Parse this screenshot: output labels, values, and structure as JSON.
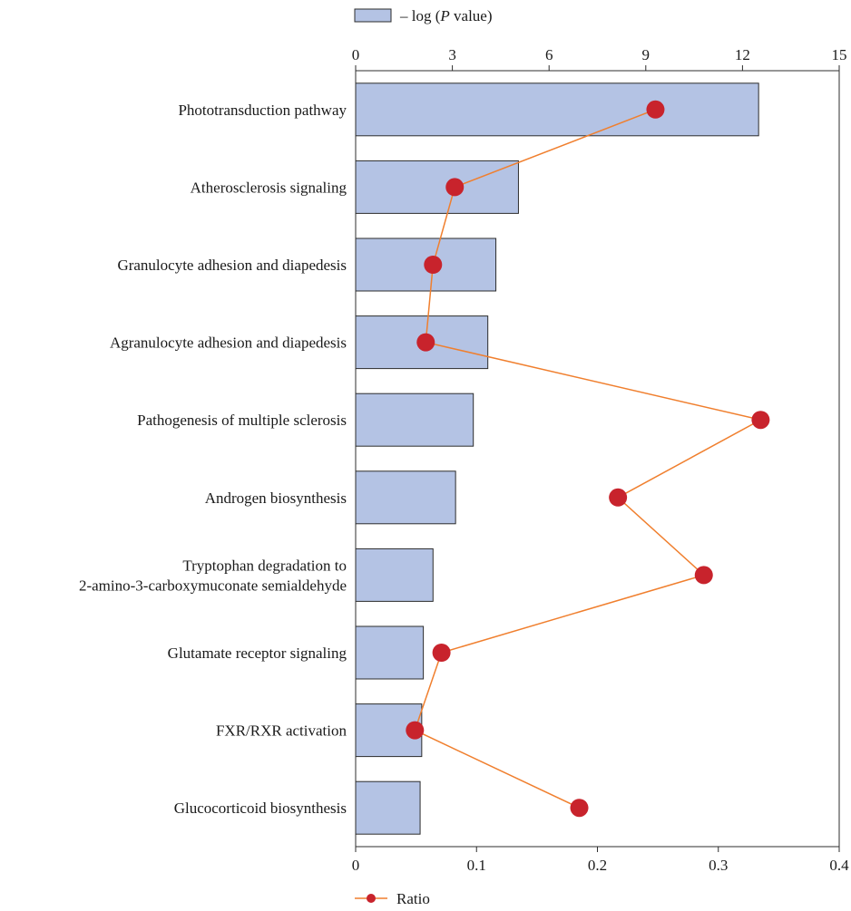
{
  "chart_data": {
    "type": "bar",
    "orientation": "horizontal",
    "categories": [
      "Phototransduction pathway",
      "Atherosclerosis signaling",
      "Granulocyte adhesion and diapedesis",
      "Agranulocyte adhesion and diapedesis",
      "Pathogenesis of multiple sclerosis",
      "Androgen biosynthesis",
      "Tryptophan degradation to\n2-amino-3-carboxymuconate semialdehyde",
      "Glutamate receptor signaling",
      "FXR/RXR activation",
      "Glucocorticoid biosynthesis"
    ],
    "series": [
      {
        "name": "– log (P value)",
        "kind": "bar",
        "axis": "top",
        "color": "#b4c3e4",
        "values": [
          12.5,
          5.05,
          4.35,
          4.1,
          3.65,
          3.1,
          2.4,
          2.1,
          2.05,
          2.0
        ]
      },
      {
        "name": "Ratio",
        "kind": "line",
        "axis": "bottom",
        "color": "#f07f2e",
        "marker_color": "#c8232c",
        "values": [
          0.248,
          0.082,
          0.064,
          0.058,
          0.335,
          0.217,
          0.288,
          0.071,
          0.049,
          0.185
        ]
      }
    ],
    "axes": {
      "top": {
        "min": 0,
        "max": 15,
        "ticks": [
          0,
          3,
          6,
          9,
          12,
          15
        ],
        "tick_labels": [
          "0",
          "3",
          "6",
          "9",
          "12",
          "15"
        ]
      },
      "bottom": {
        "min": 0,
        "max": 0.4,
        "ticks": [
          0,
          0.1,
          0.2,
          0.3,
          0.4
        ],
        "tick_labels": [
          "0",
          "0.1",
          "0.2",
          "0.3",
          "0.4"
        ]
      }
    },
    "legend": {
      "bar_label_prefix": "– log (",
      "bar_label_italic": "P",
      "bar_label_suffix": " value)",
      "line_label": "Ratio"
    },
    "grid": false
  }
}
